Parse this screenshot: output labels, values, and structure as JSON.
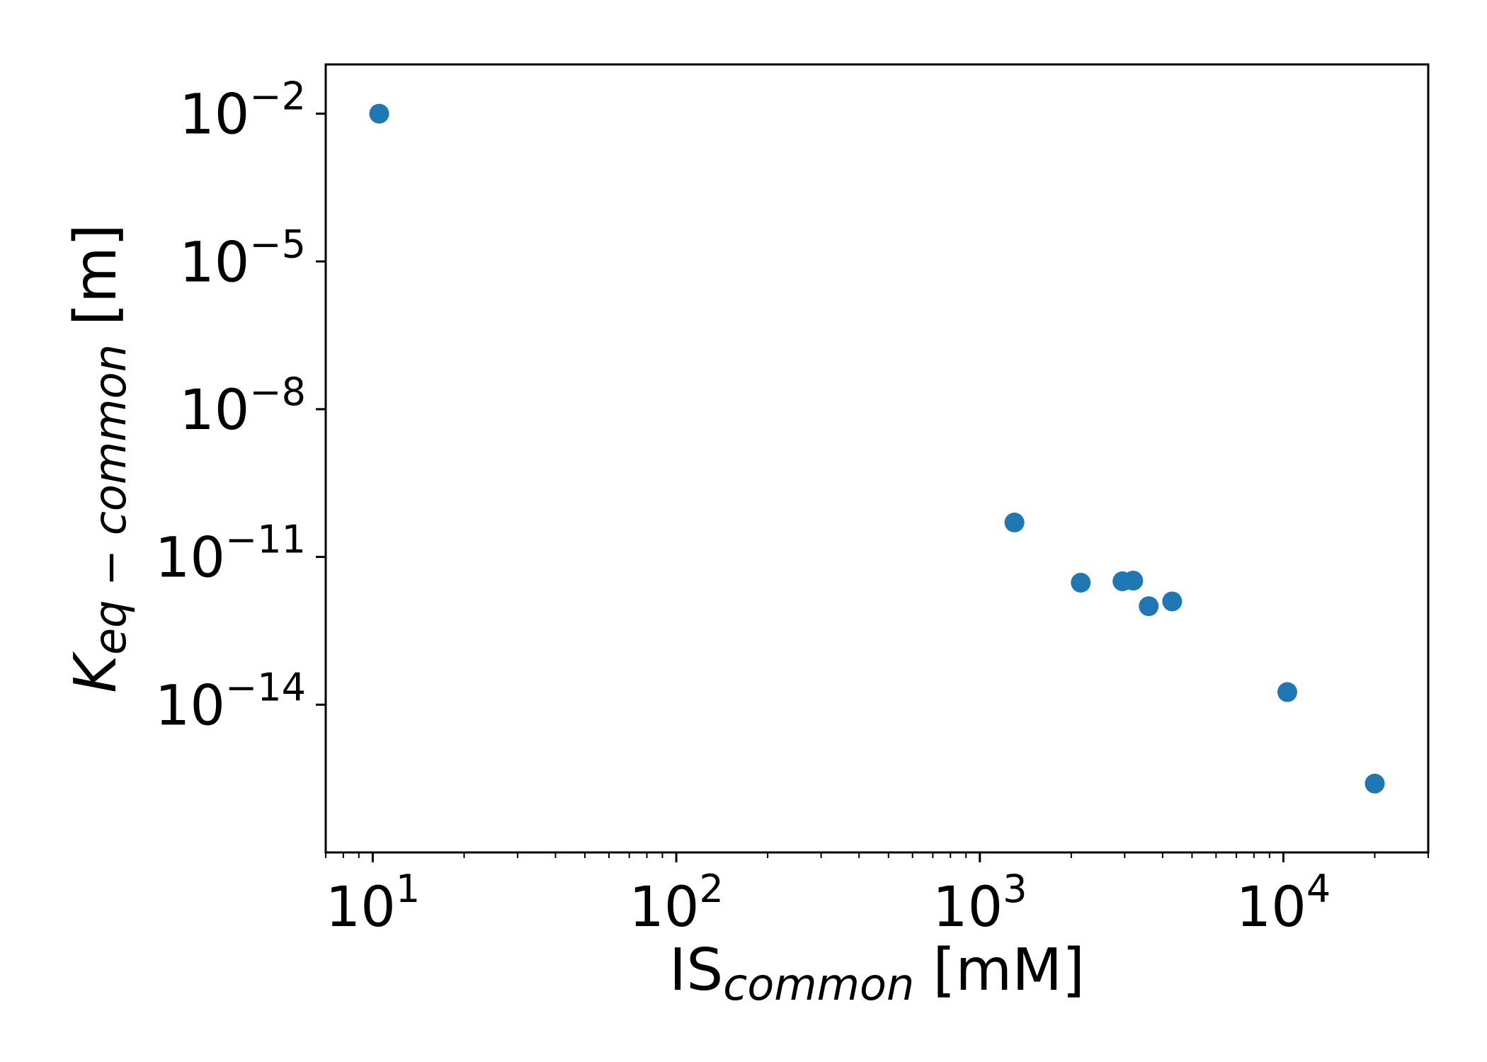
{
  "chart_data": {
    "type": "scatter",
    "x_scale": "log",
    "y_scale": "log",
    "xlim": [
      7,
      30000
    ],
    "ylim": [
      1e-17,
      0.1
    ],
    "xlabel": {
      "main": "IS",
      "subscript": "common",
      "unit": " [mM]"
    },
    "ylabel": {
      "main": "K",
      "subscript": "eq − common",
      "unit": " [m]"
    },
    "x_ticks": [
      {
        "value": 10,
        "base": "10",
        "exp": "1"
      },
      {
        "value": 100,
        "base": "10",
        "exp": "2"
      },
      {
        "value": 1000,
        "base": "10",
        "exp": "3"
      },
      {
        "value": 10000,
        "base": "10",
        "exp": "4"
      }
    ],
    "y_ticks": [
      {
        "value": 0.01,
        "base": "10",
        "exp": "−2"
      },
      {
        "value": 1e-05,
        "base": "10",
        "exp": "−5"
      },
      {
        "value": 1e-08,
        "base": "10",
        "exp": "−8"
      },
      {
        "value": 1e-11,
        "base": "10",
        "exp": "−11"
      },
      {
        "value": 1e-14,
        "base": "10",
        "exp": "−14"
      }
    ],
    "marker_color": "#1f77b4",
    "grid": false,
    "points": [
      {
        "x": 10.5,
        "y": 0.01
      },
      {
        "x": 1300,
        "y": 5e-11
      },
      {
        "x": 2150,
        "y": 3e-12
      },
      {
        "x": 2950,
        "y": 3.2e-12
      },
      {
        "x": 3200,
        "y": 3.3e-12
      },
      {
        "x": 3600,
        "y": 1e-12
      },
      {
        "x": 4300,
        "y": 1.25e-12
      },
      {
        "x": 10300,
        "y": 1.8e-14
      },
      {
        "x": 20000,
        "y": 2.5e-16
      }
    ]
  }
}
